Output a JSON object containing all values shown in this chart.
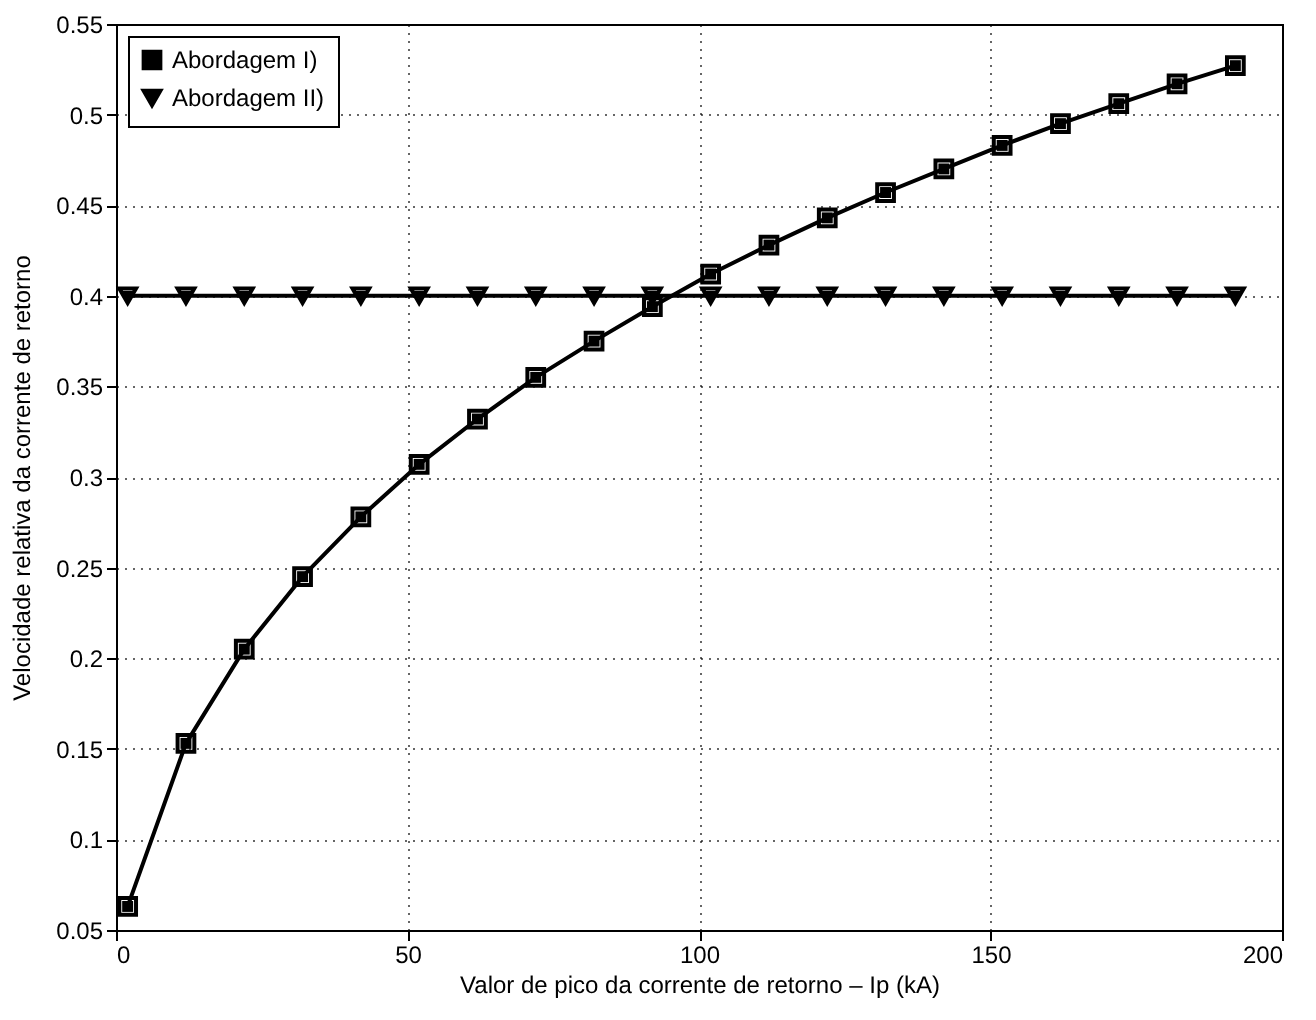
{
  "chart_data": {
    "type": "line",
    "xlabel": "Valor de pico da corrente de retorno – Ip (kA)",
    "ylabel": "Velocidade relativa da corrente de retorno",
    "x": [
      2,
      12,
      22,
      32,
      42,
      52,
      62,
      72,
      82,
      92,
      102,
      112,
      122,
      132,
      142,
      152,
      162,
      172,
      182,
      192
    ],
    "series": [
      {
        "name": "Abordagem I)",
        "color": "#000000",
        "marker": "square",
        "values": [
          0.063,
          0.153,
          0.205,
          0.245,
          0.278,
          0.307,
          0.332,
          0.355,
          0.375,
          0.394,
          0.412,
          0.428,
          0.443,
          0.457,
          0.47,
          0.483,
          0.495,
          0.506,
          0.517,
          0.527
        ]
      },
      {
        "name": "Abordagem II)",
        "color": "#000000",
        "marker": "triangle-down",
        "values": [
          0.4,
          0.4,
          0.4,
          0.4,
          0.4,
          0.4,
          0.4,
          0.4,
          0.4,
          0.4,
          0.4,
          0.4,
          0.4,
          0.4,
          0.4,
          0.4,
          0.4,
          0.4,
          0.4,
          0.4
        ]
      }
    ],
    "xlim": [
      0,
      200
    ],
    "xticks": [
      0,
      50,
      100,
      150,
      200
    ],
    "ylim": [
      0.05,
      0.55
    ],
    "yticks": [
      0.05,
      0.1,
      0.15,
      0.2,
      0.25,
      0.3,
      0.35,
      0.4,
      0.45,
      0.5,
      0.55
    ],
    "grid": true,
    "legend": "top left",
    "line_style": "solid"
  }
}
